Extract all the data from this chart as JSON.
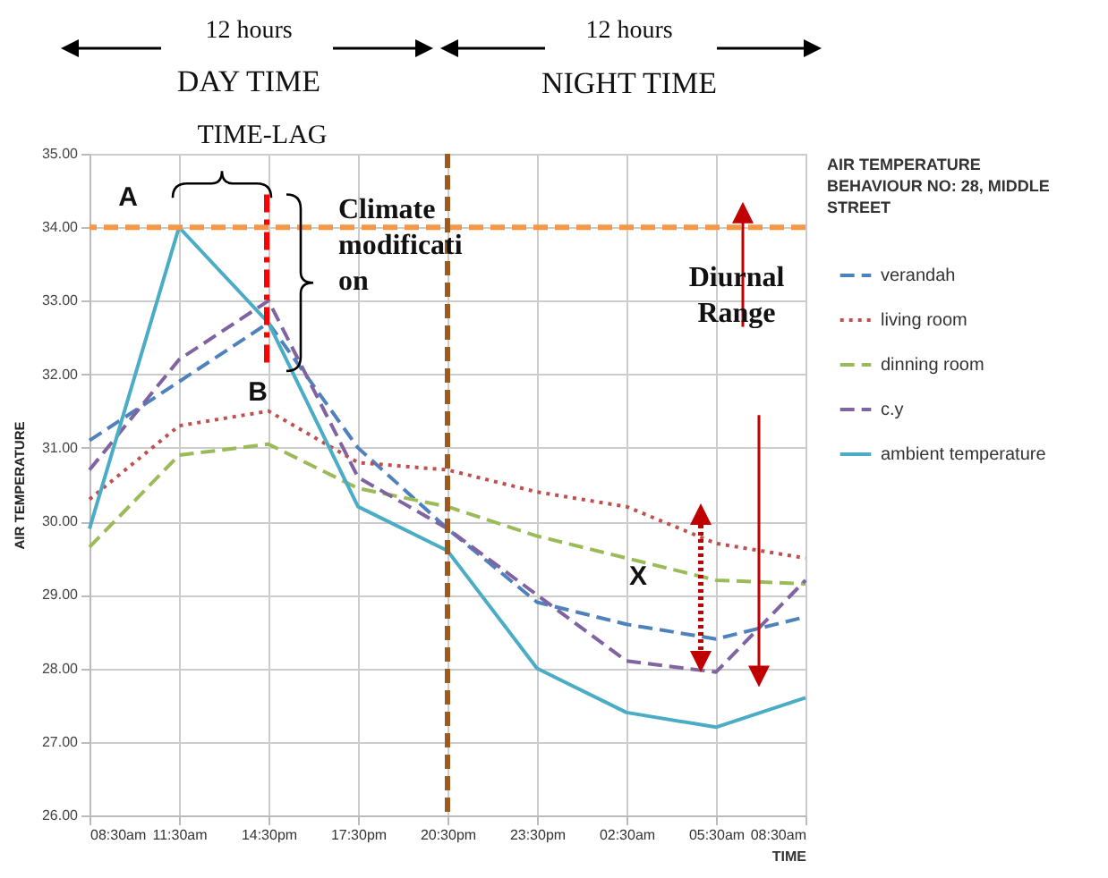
{
  "chart_data": {
    "type": "line",
    "xlabel": "TIME",
    "ylabel": "AIR TEMPERATURE",
    "legend_title": "AIR TEMPERATURE BEHAVIOUR NO: 28, MIDDLE STREET",
    "categories": [
      "08:30am",
      "11:30am",
      "14:30pm",
      "17:30pm",
      "20:30pm",
      "23:30pm",
      "02:30am",
      "05:30am",
      "08:30am"
    ],
    "ylim": [
      26,
      35
    ],
    "yticks": [
      {
        "value": 26,
        "label": "26.00"
      },
      {
        "value": 27,
        "label": "27.00"
      },
      {
        "value": 28,
        "label": "28.00"
      },
      {
        "value": 29,
        "label": "29.00"
      },
      {
        "value": 30,
        "label": "30.00"
      },
      {
        "value": 31,
        "label": "31.00"
      },
      {
        "value": 32,
        "label": "32.00"
      },
      {
        "value": 33,
        "label": "33.00"
      },
      {
        "value": 34,
        "label": "34.00"
      },
      {
        "value": 35,
        "label": "35.00"
      }
    ],
    "grid": true,
    "legend": "right",
    "marker": "none",
    "series": [
      {
        "name": "verandah",
        "color": "#4f81bd",
        "line_style": "dashed",
        "values": [
          31.1,
          31.9,
          32.7,
          31.0,
          29.9,
          28.9,
          28.6,
          28.4,
          28.7
        ]
      },
      {
        "name": "living room",
        "color": "#c0504d",
        "line_style": "dotted",
        "values": [
          30.3,
          31.3,
          31.5,
          30.8,
          30.7,
          30.4,
          30.2,
          29.7,
          29.5
        ]
      },
      {
        "name": "dinning room",
        "color": "#9bbb59",
        "line_style": "dashed",
        "values": [
          29.65,
          30.9,
          31.05,
          30.45,
          30.2,
          29.8,
          29.5,
          29.2,
          29.15
        ]
      },
      {
        "name": "c.y",
        "color": "#8064a2",
        "line_style": "dashed",
        "values": [
          30.7,
          32.2,
          33.0,
          30.6,
          29.9,
          29.0,
          28.1,
          27.95,
          29.2
        ]
      },
      {
        "name": "ambient temperature",
        "color": "#4bacc6",
        "line_style": "solid",
        "values": [
          29.9,
          34.0,
          32.7,
          30.2,
          29.6,
          28.0,
          27.4,
          27.2,
          27.6
        ]
      }
    ],
    "ref_lines": [
      {
        "axis": "y",
        "value": 34,
        "color": "#f79646",
        "line_style": "dashed"
      },
      {
        "axis": "x",
        "value": "20:30pm",
        "color": "#9c5a1e",
        "line_style": "dashed"
      }
    ],
    "annotations": [
      "12 hours",
      "DAY TIME",
      "12 hours",
      "NIGHT TIME",
      "TIME-LAG",
      "A",
      "B",
      "Climate modificati on",
      "Diurnal Range",
      "X"
    ]
  }
}
